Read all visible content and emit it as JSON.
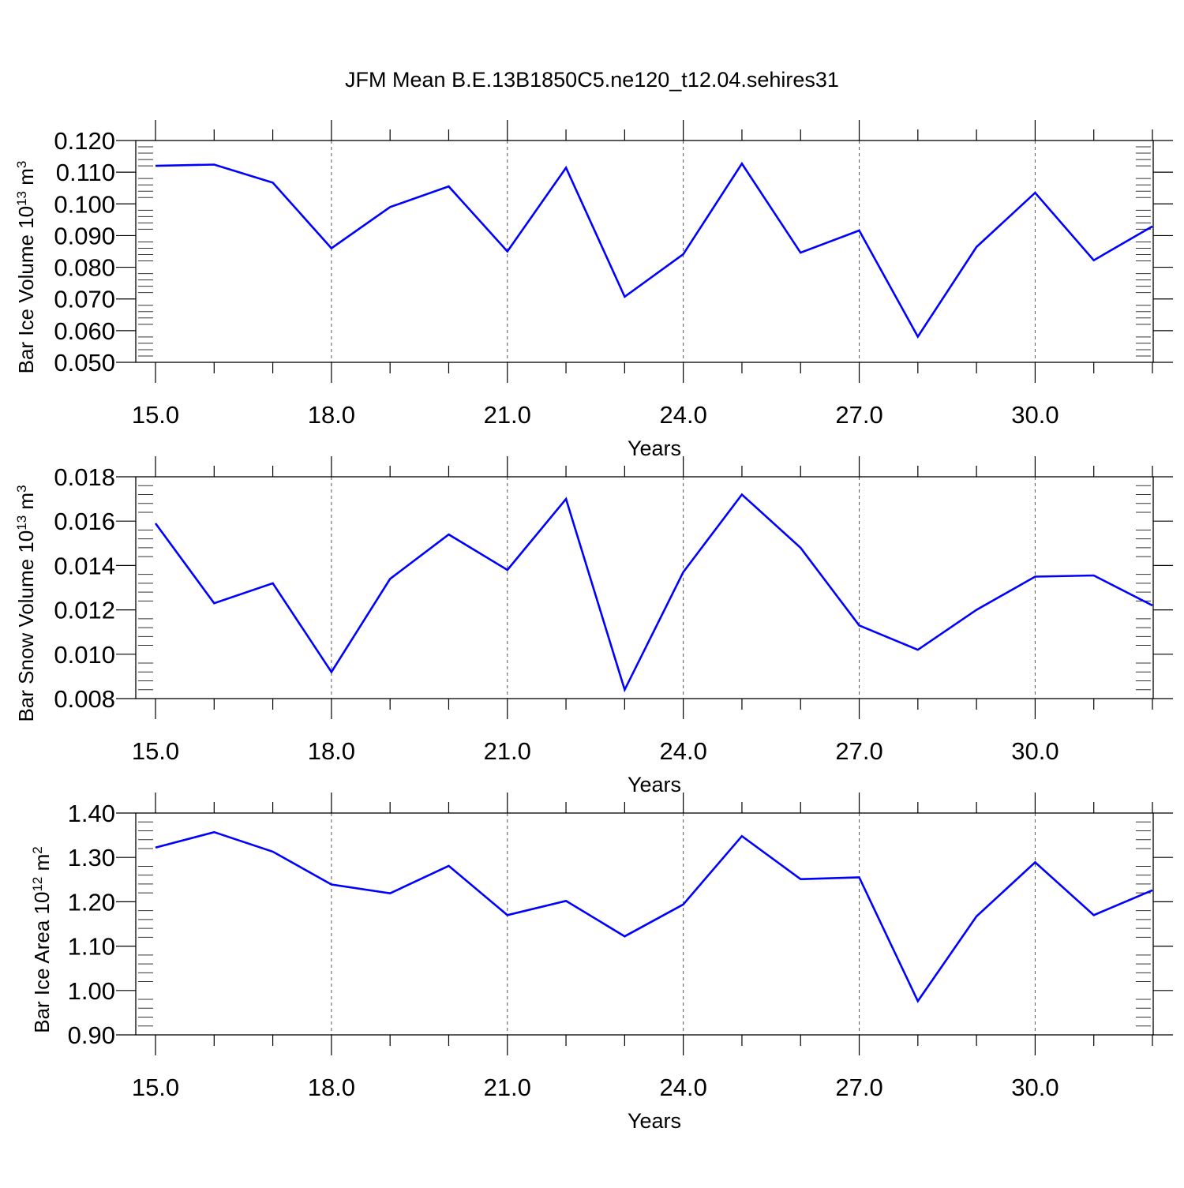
{
  "title": "JFM Mean B.E.13B1850C5.ne120_t12.04.sehires31",
  "colors": {
    "series": "#0000ff",
    "axes": "#000000",
    "grid": "#555555"
  },
  "chart_data": [
    {
      "type": "line",
      "ylabel": "Bar Ice Volume 10",
      "ylabel_exponent": "13",
      "ylabel_unit": " m",
      "ylabel_unit_exponent": "3",
      "xlabel": "Years",
      "xlim": [
        15,
        32
      ],
      "ylim": [
        0.05,
        0.12
      ],
      "x_ticks": [
        15,
        18,
        21,
        24,
        27,
        30
      ],
      "x_tick_labels": [
        "15.0",
        "18.0",
        "21.0",
        "24.0",
        "27.0",
        "30.0"
      ],
      "y_ticks": [
        0.05,
        0.06,
        0.07,
        0.08,
        0.09,
        0.1,
        0.11,
        0.12
      ],
      "y_tick_labels": [
        "0.050",
        "0.060",
        "0.070",
        "0.080",
        "0.090",
        "0.100",
        "0.110",
        "0.120"
      ],
      "grid": "vertical dashed at major x ticks",
      "x": [
        15,
        16,
        17,
        18,
        19,
        20,
        21,
        22,
        23,
        24,
        25,
        26,
        27,
        28,
        29,
        30,
        31,
        32
      ],
      "values": [
        0.112,
        0.1124,
        0.1067,
        0.086,
        0.099,
        0.1055,
        0.085,
        0.1114,
        0.0707,
        0.0841,
        0.1127,
        0.0846,
        0.0916,
        0.0581,
        0.0864,
        0.1035,
        0.0822,
        0.0929
      ]
    },
    {
      "type": "line",
      "ylabel": "Bar Snow Volume 10",
      "ylabel_exponent": "13",
      "ylabel_unit": " m",
      "ylabel_unit_exponent": "3",
      "xlabel": "Years",
      "xlim": [
        15,
        32
      ],
      "ylim": [
        0.008,
        0.018
      ],
      "x_ticks": [
        15,
        18,
        21,
        24,
        27,
        30
      ],
      "x_tick_labels": [
        "15.0",
        "18.0",
        "21.0",
        "24.0",
        "27.0",
        "30.0"
      ],
      "y_ticks": [
        0.008,
        0.01,
        0.012,
        0.014,
        0.016,
        0.018
      ],
      "y_tick_labels": [
        "0.008",
        "0.010",
        "0.012",
        "0.014",
        "0.016",
        "0.018"
      ],
      "grid": "vertical dashed at major x ticks",
      "x": [
        15,
        16,
        17,
        18,
        19,
        20,
        21,
        22,
        23,
        24,
        25,
        26,
        27,
        28,
        29,
        30,
        31,
        32
      ],
      "values": [
        0.0159,
        0.0123,
        0.0132,
        0.0092,
        0.0134,
        0.0154,
        0.0138,
        0.017,
        0.0084,
        0.0137,
        0.0172,
        0.0148,
        0.0113,
        0.0102,
        0.012,
        0.0135,
        0.01355,
        0.0122
      ]
    },
    {
      "type": "line",
      "ylabel": "Bar Ice Area 10",
      "ylabel_exponent": "12",
      "ylabel_unit": " m",
      "ylabel_unit_exponent": "2",
      "xlabel": "Years",
      "xlim": [
        15,
        32
      ],
      "ylim": [
        0.9,
        1.4
      ],
      "x_ticks": [
        15,
        18,
        21,
        24,
        27,
        30
      ],
      "x_tick_labels": [
        "15.0",
        "18.0",
        "21.0",
        "24.0",
        "27.0",
        "30.0"
      ],
      "y_ticks": [
        0.9,
        1.0,
        1.1,
        1.2,
        1.3,
        1.4
      ],
      "y_tick_labels": [
        "0.90",
        "1.00",
        "1.10",
        "1.20",
        "1.30",
        "1.40"
      ],
      "grid": "vertical dashed at major x ticks",
      "x": [
        15,
        16,
        17,
        18,
        19,
        20,
        21,
        22,
        23,
        24,
        25,
        26,
        27,
        28,
        29,
        30,
        31,
        32
      ],
      "values": [
        1.322,
        1.357,
        1.313,
        1.239,
        1.219,
        1.281,
        1.17,
        1.202,
        1.122,
        1.194,
        1.348,
        1.251,
        1.255,
        0.976,
        1.167,
        1.289,
        1.17,
        1.226
      ]
    }
  ]
}
